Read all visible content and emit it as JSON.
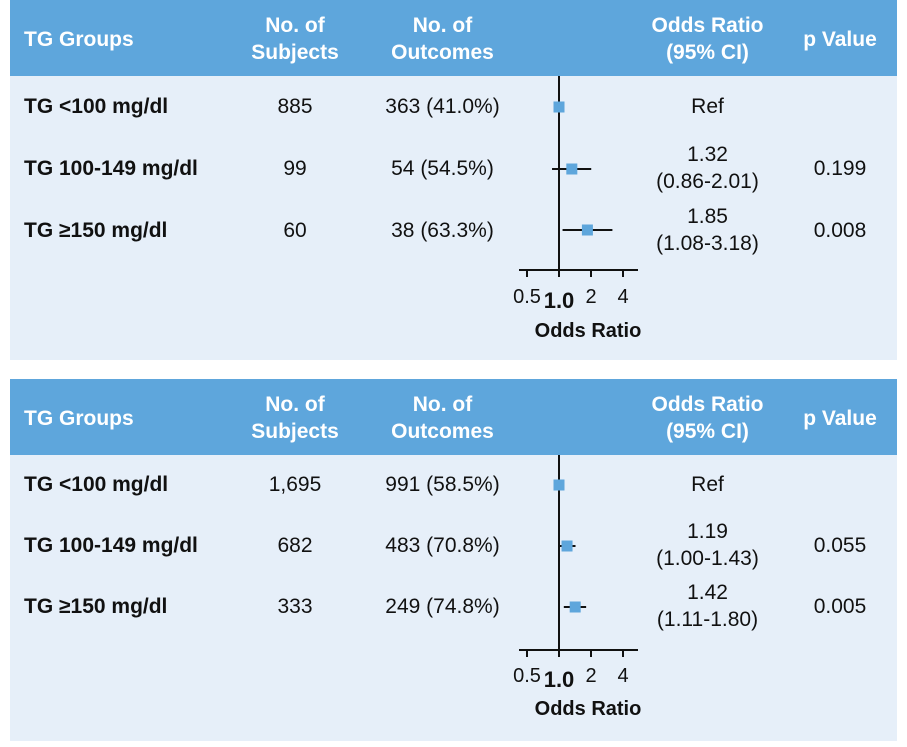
{
  "colors": {
    "header_bg": "#5ea6dc",
    "panel_bg": "#e6eff9",
    "marker": "#5ea6dc",
    "line": "#111111"
  },
  "columns": {
    "groups": "TG Groups",
    "subjects": [
      "No. of",
      "Subjects"
    ],
    "outcomes": [
      "No. of",
      "Outcomes"
    ],
    "or": [
      "Odds Ratio",
      "(95% CI)"
    ],
    "p": "p Value"
  },
  "chart_data": [
    {
      "type": "forest",
      "xlabel": "Odds Ratio",
      "xscale": "log",
      "xlim": [
        0.35,
        5.5
      ],
      "ticks": [
        0.5,
        1.0,
        2,
        4
      ],
      "tick_labels": [
        "0.5",
        "1.0",
        "2",
        "4"
      ],
      "reference_line": 1.0,
      "rows": [
        {
          "group": "TG <100 mg/dl",
          "subjects": "885",
          "outcomes": "363 (41.0%)",
          "or_text": [
            "Ref"
          ],
          "p": "",
          "or": 1.0,
          "ci": [
            1.0,
            1.0
          ]
        },
        {
          "group": "TG 100-149 mg/dl",
          "subjects": "99",
          "outcomes": "54 (54.5%)",
          "or_text": [
            "1.32",
            "(0.86-2.01)"
          ],
          "p": "0.199",
          "or": 1.32,
          "ci": [
            0.86,
            2.01
          ]
        },
        {
          "group": "TG ≥150 mg/dl",
          "subjects": "60",
          "outcomes": "38 (63.3%)",
          "or_text": [
            "1.85",
            "(1.08-3.18)"
          ],
          "p": "0.008",
          "or": 1.85,
          "ci": [
            1.08,
            3.18
          ]
        }
      ]
    },
    {
      "type": "forest",
      "xlabel": "Odds Ratio",
      "xscale": "log",
      "xlim": [
        0.35,
        5.5
      ],
      "ticks": [
        0.5,
        1.0,
        2,
        4
      ],
      "tick_labels": [
        "0.5",
        "1.0",
        "2",
        "4"
      ],
      "reference_line": 1.0,
      "rows": [
        {
          "group": "TG <100 mg/dl",
          "subjects": "1,695",
          "outcomes": "991 (58.5%)",
          "or_text": [
            "Ref"
          ],
          "p": "",
          "or": 1.0,
          "ci": [
            1.0,
            1.0
          ]
        },
        {
          "group": "TG 100-149 mg/dl",
          "subjects": "682",
          "outcomes": "483 (70.8%)",
          "or_text": [
            "1.19",
            "(1.00-1.43)"
          ],
          "p": "0.055",
          "or": 1.19,
          "ci": [
            1.0,
            1.43
          ]
        },
        {
          "group": "TG ≥150 mg/dl",
          "subjects": "333",
          "outcomes": "249 (74.8%)",
          "or_text": [
            "1.42",
            "(1.11-1.80)"
          ],
          "p": "0.005",
          "or": 1.42,
          "ci": [
            1.11,
            1.8
          ]
        }
      ]
    }
  ]
}
